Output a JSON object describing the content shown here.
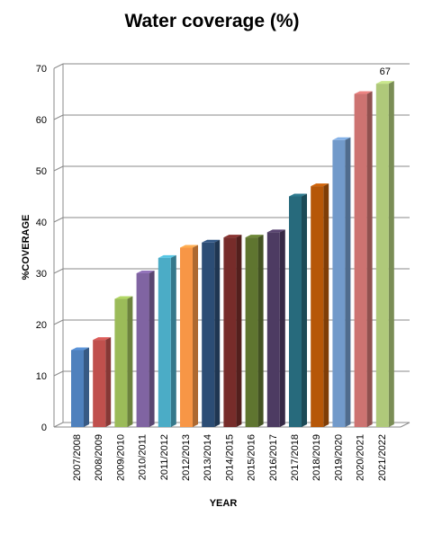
{
  "chart_data": {
    "type": "bar",
    "title": "Water coverage (%)",
    "xlabel": "YEAR",
    "ylabel": "%COVERAGE",
    "categories": [
      "2007/2008",
      "2008/2009",
      "2009/2010",
      "2010/2011",
      "2011/2012",
      "2012/2013",
      "2013/2014",
      "2014/2015",
      "2015/2016",
      "2016/2017",
      "2017/2018",
      "2018/2019",
      "2019/2020",
      "2020/2021",
      "2021/2022"
    ],
    "values": [
      15,
      17,
      25,
      30,
      33,
      35,
      36,
      37,
      37,
      38,
      45,
      47,
      56,
      65,
      67
    ],
    "colors": [
      "#4f81bd",
      "#c0504d",
      "#9bbb59",
      "#8064a2",
      "#4bacc6",
      "#f79646",
      "#2c4d75",
      "#772c2a",
      "#5f7530",
      "#4d3b62",
      "#276a7c",
      "#b65708",
      "#729aca",
      "#cd7371",
      "#afc97a"
    ],
    "ylim": [
      0,
      70
    ],
    "yticks": [
      0,
      10,
      20,
      30,
      40,
      50,
      60,
      70
    ],
    "data_labels": [
      {
        "index": 14,
        "text": "67"
      }
    ],
    "grid": true,
    "legend": "none"
  }
}
